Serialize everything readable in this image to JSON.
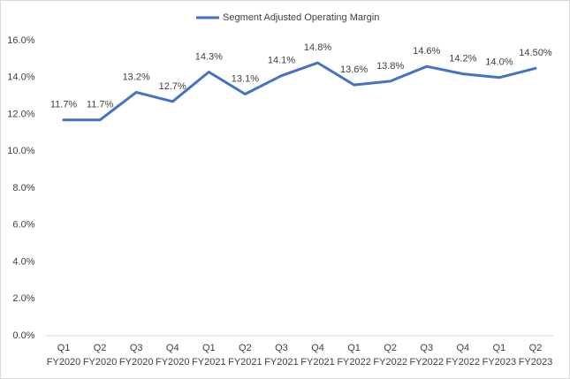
{
  "chart_data": {
    "type": "line",
    "categories": [
      "Q1 FY2020",
      "Q2 FY2020",
      "Q3 FY2020",
      "Q4 FY2020",
      "Q1 FY2021",
      "Q2 FY2021",
      "Q3 FY2021",
      "Q4 FY2021",
      "Q1 FY2022",
      "Q2 FY2022",
      "Q3 FY2022",
      "Q4 FY2022",
      "Q1 FY2023",
      "Q2 FY2023"
    ],
    "series": [
      {
        "name": "Segment Adjusted Operating Margin",
        "color": "#4472c4",
        "values": [
          11.7,
          11.7,
          13.2,
          12.7,
          14.3,
          13.1,
          14.1,
          14.8,
          13.6,
          13.8,
          14.6,
          14.2,
          14.0,
          14.5
        ],
        "value_labels": [
          "11.7%",
          "11.7%",
          "13.2%",
          "12.7%",
          "14.3%",
          "13.1%",
          "14.1%",
          "14.8%",
          "13.6%",
          "13.8%",
          "14.6%",
          "14.2%",
          "14.0%",
          "14.50%"
        ]
      }
    ],
    "ylim": [
      0,
      16
    ],
    "yticks": [
      {
        "value": 0,
        "label": "0.0%"
      },
      {
        "value": 2,
        "label": "2.0%"
      },
      {
        "value": 4,
        "label": "4.0%"
      },
      {
        "value": 6,
        "label": "6.0%"
      },
      {
        "value": 8,
        "label": "8.0%"
      },
      {
        "value": 10,
        "label": "10.0%"
      },
      {
        "value": 12,
        "label": "12.0%"
      },
      {
        "value": 14,
        "label": "14.0%"
      },
      {
        "value": 16,
        "label": "16.0%"
      }
    ],
    "grid": false,
    "legend": "top"
  }
}
